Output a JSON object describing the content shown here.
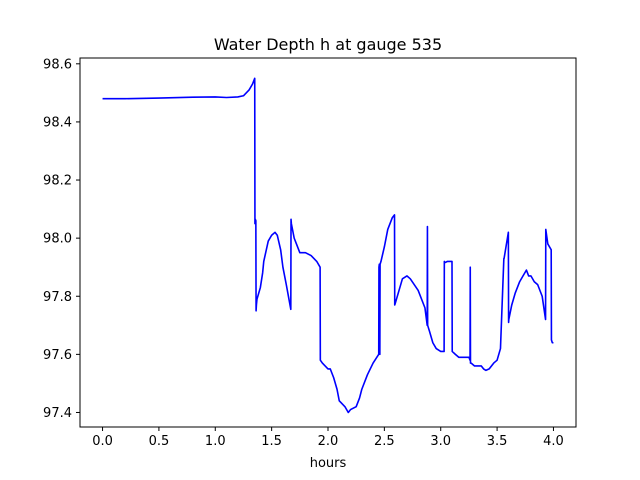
{
  "chart_data": {
    "type": "line",
    "title": "Water Depth h at gauge 535",
    "xlabel": "hours",
    "ylabel": "",
    "xlim": [
      -0.2,
      4.2
    ],
    "ylim": [
      97.35,
      98.62
    ],
    "xticks": [
      0.0,
      0.5,
      1.0,
      1.5,
      2.0,
      2.5,
      3.0,
      3.5,
      4.0
    ],
    "xtick_labels": [
      "0.0",
      "0.5",
      "1.0",
      "1.5",
      "2.0",
      "2.5",
      "3.0",
      "3.5",
      "4.0"
    ],
    "yticks": [
      97.4,
      97.6,
      97.8,
      98.0,
      98.2,
      98.4,
      98.6
    ],
    "ytick_labels": [
      "97.4",
      "97.6",
      "97.8",
      "98.0",
      "98.2",
      "98.4",
      "98.6"
    ],
    "grid": false,
    "series": [
      {
        "color": "#0000ff",
        "x": [
          0.0,
          0.2,
          0.5,
          0.8,
          1.0,
          1.1,
          1.2,
          1.25,
          1.3,
          1.33,
          1.35,
          1.352,
          1.355,
          1.36,
          1.362,
          1.365,
          1.37,
          1.4,
          1.42,
          1.43,
          1.47,
          1.5,
          1.53,
          1.55,
          1.58,
          1.6,
          1.63,
          1.67,
          1.672,
          1.675,
          1.7,
          1.72,
          1.75,
          1.8,
          1.85,
          1.9,
          1.93,
          1.932,
          1.95,
          2.0,
          2.02,
          2.05,
          2.08,
          2.1,
          2.15,
          2.18,
          2.2,
          2.25,
          2.28,
          2.3,
          2.35,
          2.4,
          2.45,
          2.452,
          2.455,
          2.46,
          2.462,
          2.47,
          2.5,
          2.53,
          2.57,
          2.59,
          2.592,
          2.6,
          2.63,
          2.66,
          2.7,
          2.73,
          2.8,
          2.86,
          2.88,
          2.882,
          2.884,
          2.9,
          2.93,
          2.96,
          3.0,
          3.03,
          3.032,
          3.034,
          3.06,
          3.1,
          3.102,
          3.13,
          3.16,
          3.2,
          3.25,
          3.26,
          3.262,
          3.264,
          3.27,
          3.3,
          3.33,
          3.36,
          3.38,
          3.4,
          3.43,
          3.47,
          3.5,
          3.53,
          3.56,
          3.562,
          3.6,
          3.602,
          3.604,
          3.63,
          3.66,
          3.7,
          3.73,
          3.76,
          3.78,
          3.8,
          3.83,
          3.86,
          3.9,
          3.93,
          3.932,
          3.95,
          3.98,
          3.982,
          3.99,
          4.0
        ],
        "y": [
          98.48,
          98.48,
          98.482,
          98.485,
          98.486,
          98.484,
          98.486,
          98.49,
          98.51,
          98.53,
          98.55,
          98.05,
          98.065,
          98.06,
          97.75,
          97.77,
          97.79,
          97.83,
          97.88,
          97.92,
          97.99,
          98.01,
          98.02,
          98.01,
          97.96,
          97.9,
          97.84,
          97.755,
          98.065,
          98.05,
          98.0,
          97.98,
          97.95,
          97.95,
          97.94,
          97.92,
          97.9,
          97.58,
          97.57,
          97.55,
          97.55,
          97.52,
          97.48,
          97.44,
          97.42,
          97.4,
          97.41,
          97.42,
          97.45,
          97.48,
          97.53,
          97.57,
          97.6,
          97.9,
          97.91,
          97.6,
          97.91,
          97.92,
          97.97,
          98.03,
          98.07,
          98.08,
          97.77,
          97.78,
          97.82,
          97.86,
          97.87,
          97.86,
          97.82,
          97.76,
          97.7,
          98.04,
          97.7,
          97.68,
          97.64,
          97.62,
          97.61,
          97.61,
          97.92,
          97.915,
          97.92,
          97.92,
          97.61,
          97.6,
          97.59,
          97.59,
          97.59,
          97.58,
          97.9,
          97.57,
          97.57,
          97.56,
          97.56,
          97.56,
          97.55,
          97.545,
          97.55,
          97.57,
          97.58,
          97.62,
          97.93,
          97.93,
          98.02,
          97.71,
          97.72,
          97.77,
          97.81,
          97.85,
          97.87,
          97.89,
          97.87,
          97.87,
          97.85,
          97.84,
          97.8,
          97.72,
          98.03,
          97.98,
          97.96,
          97.65,
          97.64,
          97.64
        ]
      }
    ]
  }
}
